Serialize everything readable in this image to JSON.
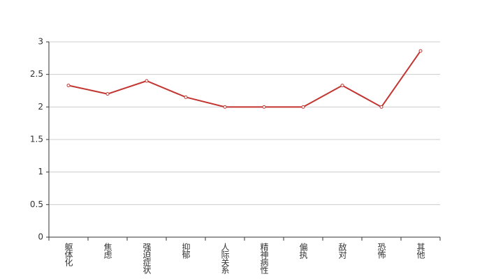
{
  "chart_data": {
    "type": "line",
    "categories": [
      "躯体化",
      "焦虑",
      "强迫症状",
      "抑郁",
      "人际关系",
      "精神病性",
      "偏执",
      "敌对",
      "恐怖",
      "其他"
    ],
    "series": [
      {
        "color": "#c23531",
        "values": [
          2.33,
          2.2,
          2.4,
          2.15,
          2.0,
          2.0,
          2.0,
          2.33,
          2.0,
          2.86
        ]
      }
    ],
    "ylim": [
      0,
      3
    ],
    "yticks": [
      0,
      0.5,
      1,
      1.5,
      2,
      2.5,
      3
    ],
    "grid": true
  }
}
